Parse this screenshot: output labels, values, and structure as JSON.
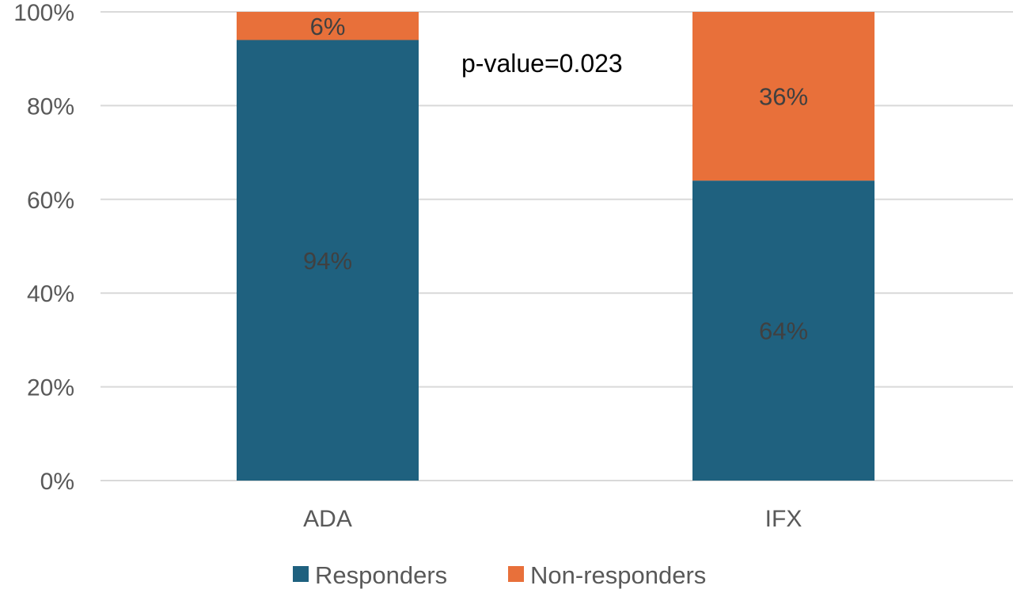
{
  "chart_data": {
    "type": "bar",
    "stacked": true,
    "percent_stacked": true,
    "categories": [
      "ADA",
      "IFX"
    ],
    "series": [
      {
        "name": "Responders",
        "values": [
          94,
          64
        ],
        "labels": [
          "94%",
          "64%"
        ],
        "color": "#1f617f"
      },
      {
        "name": "Non-responders",
        "values": [
          6,
          36
        ],
        "labels": [
          "6%",
          "36%"
        ],
        "color": "#e8703a"
      }
    ],
    "ylim": [
      0,
      100
    ],
    "yticks": [
      0,
      20,
      40,
      60,
      80,
      100
    ],
    "ytick_labels": [
      "0%",
      "20%",
      "40%",
      "60%",
      "80%",
      "100%"
    ],
    "grid": true,
    "legend_position": "bottom",
    "annotation": "p-value=0.023",
    "colors": {
      "gridline": "#d9d9d9",
      "tick_text": "#595959",
      "data_label": "#404040"
    }
  }
}
